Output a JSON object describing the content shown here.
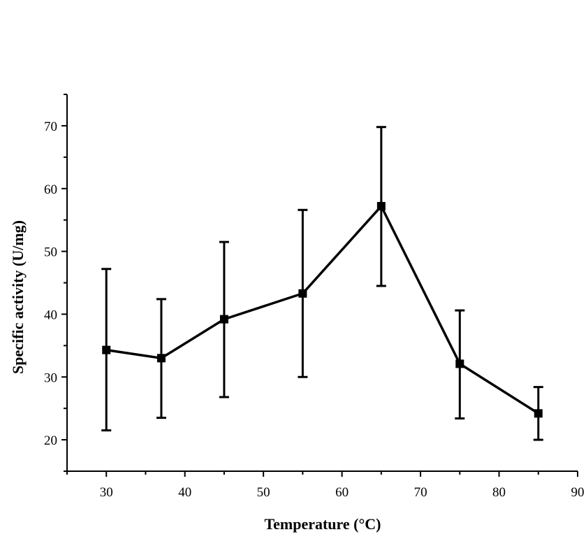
{
  "chart_data": {
    "type": "line",
    "title": "",
    "xlabel": "Temperature (°C)",
    "ylabel": "Specific activity (U/mg)",
    "xlim": [
      25,
      90
    ],
    "ylim": [
      15,
      75
    ],
    "x_ticks": [
      30,
      40,
      50,
      60,
      70,
      80,
      90
    ],
    "y_ticks": [
      20,
      30,
      40,
      50,
      60,
      70
    ],
    "grid": false,
    "legend": "none",
    "marker": "square",
    "series": [
      {
        "x": [
          30,
          37,
          45,
          55,
          65,
          75,
          85
        ],
        "y": [
          34.3,
          33.0,
          39.2,
          43.3,
          57.2,
          32.1,
          24.2
        ],
        "err_low": [
          21.5,
          23.5,
          26.8,
          30.0,
          44.5,
          23.4,
          20.0
        ],
        "err_high": [
          47.2,
          42.4,
          51.5,
          56.6,
          69.8,
          40.6,
          28.4
        ]
      }
    ],
    "colors": {
      "line": "#000000",
      "marker": "#000000",
      "error_bar": "#000000"
    }
  }
}
